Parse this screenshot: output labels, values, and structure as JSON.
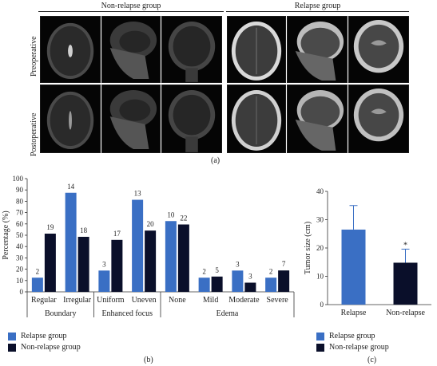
{
  "panel_a": {
    "groups": [
      "Non-relapse group",
      "Relapse group"
    ],
    "rows": [
      "Preoperative",
      "Postoperative"
    ],
    "caption": "(a)"
  },
  "panel_b": {
    "caption": "(b)",
    "legend": [
      "Relapse group",
      "Non-relapse group"
    ]
  },
  "panel_c": {
    "caption": "(c)",
    "legend": [
      "Relapse group",
      "Non-relapse group"
    ]
  },
  "colors": {
    "relapse": "#3a6fc4",
    "nonrelapse": "#0a0f2a"
  },
  "chart_data": [
    {
      "type": "bar",
      "ylabel": "Percentage (%)",
      "ylim": [
        0,
        100
      ],
      "yticks": [
        0,
        10,
        20,
        30,
        40,
        50,
        60,
        70,
        80,
        90,
        100
      ],
      "categories": [
        "Regular",
        "Irregular",
        "Uniform",
        "Uneven",
        "None",
        "Mild",
        "Moderate",
        "Severe"
      ],
      "groups": [
        {
          "label": "Boundary",
          "categories": [
            "Regular",
            "Irregular"
          ]
        },
        {
          "label": "Enhanced focus",
          "categories": [
            "Uniform",
            "Uneven"
          ]
        },
        {
          "label": "Edema",
          "categories": [
            "None",
            "Mild",
            "Moderate",
            "Severe"
          ]
        }
      ],
      "series": [
        {
          "name": "Relapse group",
          "values": [
            12.5,
            87.5,
            18.8,
            81.3,
            62.5,
            12.5,
            18.8,
            12.5
          ],
          "labels": [
            "2",
            "14",
            "3",
            "13",
            "10",
            "2",
            "3",
            "2"
          ]
        },
        {
          "name": "Non-relapse group",
          "values": [
            51.4,
            48.6,
            45.9,
            54.1,
            59.5,
            13.5,
            8.1,
            18.9
          ],
          "labels": [
            "19",
            "18",
            "17",
            "20",
            "22",
            "5",
            "3",
            "7"
          ]
        }
      ],
      "legend_position": "bottom-left"
    },
    {
      "type": "bar",
      "ylabel": "Tumor size (cm)",
      "ylim": [
        0,
        40
      ],
      "yticks": [
        0,
        10,
        20,
        30,
        40
      ],
      "categories": [
        "Relapse",
        "Non-relapse"
      ],
      "values": [
        26.5,
        14.8
      ],
      "errors": [
        8.5,
        4.8
      ],
      "annotations": [
        "",
        "*"
      ],
      "legend_position": "bottom"
    }
  ]
}
